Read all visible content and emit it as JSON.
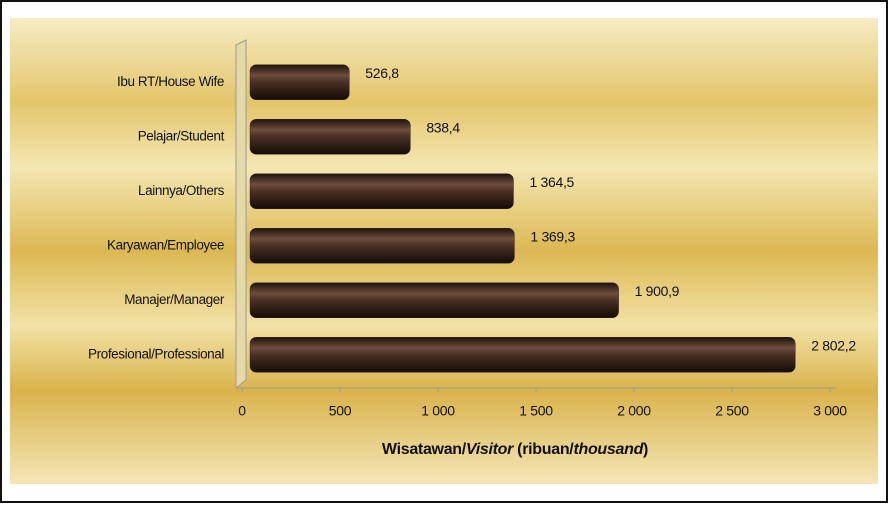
{
  "chart_data": {
    "type": "barh",
    "categories": [
      "Ibu RT/House Wife",
      "Pelajar/Student",
      "Lainnya/Others",
      "Karyawan/Employee",
      "Manajer/Manager",
      "Profesional/Professional"
    ],
    "values": [
      526.8,
      838.4,
      1364.5,
      1369.3,
      1900.9,
      2802.2
    ],
    "value_labels": [
      "526,8",
      "838,4",
      "1 364,5",
      "1 369,3",
      "1 900,9",
      "2 802,2"
    ],
    "color": "#3a2418",
    "xlim": [
      0,
      3000
    ],
    "xticks": [
      0,
      500,
      {
        "value": 1000,
        "label": "1 000"
      },
      {
        "value": 1500,
        "label": "1 500"
      },
      {
        "value": 2000,
        "label": "2 000"
      },
      {
        "value": 2500,
        "label": "2 500"
      },
      {
        "value": 3000,
        "label": "3 000"
      }
    ],
    "x_label_parts": [
      "Wisatawan/",
      "Visitor",
      " (ribuan/",
      "thousand",
      ")"
    ],
    "grid": false
  }
}
